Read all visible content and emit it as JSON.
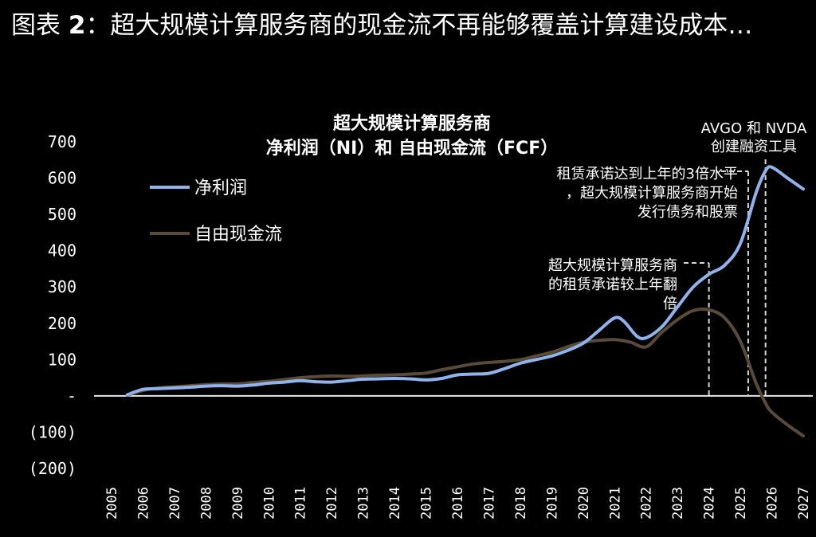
{
  "figure": {
    "title_prefix": "图表",
    "title_number": "2",
    "title_rest": "：超大规模计算服务商的现金流不再能够覆盖计算建设成本…"
  },
  "colors": {
    "background": "#000000",
    "net_income": "#8fb3ea",
    "fcf": "#5a4a38",
    "text": "#ffffff",
    "dashed": "#d8d8d8"
  },
  "chart_data": {
    "type": "line",
    "title_line1": "超大规模计算服务商",
    "title_line2": "净利润（NI）和 自由现金流（FCF）",
    "x": [
      "2005",
      "2006",
      "2007",
      "2008",
      "2009",
      "2010",
      "2011",
      "2012",
      "2013",
      "2014",
      "2015",
      "2016",
      "2017",
      "2018",
      "2019",
      "2020",
      "2021",
      "2022",
      "2023",
      "2024",
      "2025",
      "2026",
      "2027"
    ],
    "y_ticks": [
      700,
      600,
      500,
      400,
      300,
      200,
      100,
      0,
      -100,
      -200
    ],
    "y_tick_labels": [
      "700",
      "600",
      "500",
      "400",
      "300",
      "200",
      "100",
      "-",
      "(100)",
      "(200)"
    ],
    "ylim": [
      -200,
      700
    ],
    "grid": false,
    "legend_position": "top-left",
    "series": [
      {
        "name": "净利润",
        "color": "#8fb3ea",
        "points": [
          [
            2005.5,
            3
          ],
          [
            2006,
            18
          ],
          [
            2006.5,
            20
          ],
          [
            2007,
            22
          ],
          [
            2007.5,
            24
          ],
          [
            2008,
            27
          ],
          [
            2008.5,
            28
          ],
          [
            2009,
            27
          ],
          [
            2009.5,
            30
          ],
          [
            2010,
            35
          ],
          [
            2010.5,
            38
          ],
          [
            2011,
            42
          ],
          [
            2011.5,
            39
          ],
          [
            2012,
            38
          ],
          [
            2012.5,
            42
          ],
          [
            2013,
            46
          ],
          [
            2013.5,
            47
          ],
          [
            2014,
            48
          ],
          [
            2014.5,
            47
          ],
          [
            2015,
            44
          ],
          [
            2015.5,
            48
          ],
          [
            2016,
            58
          ],
          [
            2016.5,
            60
          ],
          [
            2017,
            62
          ],
          [
            2017.5,
            75
          ],
          [
            2018,
            90
          ],
          [
            2018.5,
            100
          ],
          [
            2019,
            110
          ],
          [
            2019.5,
            125
          ],
          [
            2020,
            145
          ],
          [
            2020.5,
            180
          ],
          [
            2021,
            215
          ],
          [
            2021.3,
            205
          ],
          [
            2021.7,
            165
          ],
          [
            2022,
            160
          ],
          [
            2022.5,
            190
          ],
          [
            2023,
            245
          ],
          [
            2023.5,
            300
          ],
          [
            2024,
            335
          ],
          [
            2024.5,
            360
          ],
          [
            2025,
            420
          ],
          [
            2025.5,
            560
          ],
          [
            2025.8,
            620
          ],
          [
            2026,
            630
          ],
          [
            2026.5,
            600
          ],
          [
            2027,
            570
          ]
        ]
      },
      {
        "name": "自由现金流",
        "color": "#5a4a38",
        "points": [
          [
            2005.5,
            2
          ],
          [
            2006,
            15
          ],
          [
            2006.5,
            22
          ],
          [
            2007,
            25
          ],
          [
            2007.5,
            28
          ],
          [
            2008,
            31
          ],
          [
            2008.5,
            33
          ],
          [
            2009,
            33
          ],
          [
            2009.5,
            37
          ],
          [
            2010,
            40
          ],
          [
            2010.5,
            45
          ],
          [
            2011,
            50
          ],
          [
            2011.5,
            53
          ],
          [
            2012,
            55
          ],
          [
            2012.5,
            54
          ],
          [
            2013,
            55
          ],
          [
            2013.5,
            57
          ],
          [
            2014,
            58
          ],
          [
            2014.5,
            60
          ],
          [
            2015,
            63
          ],
          [
            2015.5,
            72
          ],
          [
            2016,
            80
          ],
          [
            2016.5,
            88
          ],
          [
            2017,
            92
          ],
          [
            2017.5,
            95
          ],
          [
            2018,
            100
          ],
          [
            2018.5,
            110
          ],
          [
            2019,
            120
          ],
          [
            2019.5,
            135
          ],
          [
            2020,
            148
          ],
          [
            2020.5,
            153
          ],
          [
            2021,
            155
          ],
          [
            2021.5,
            148
          ],
          [
            2022,
            135
          ],
          [
            2022.5,
            175
          ],
          [
            2023,
            210
          ],
          [
            2023.5,
            235
          ],
          [
            2024,
            237
          ],
          [
            2024.5,
            215
          ],
          [
            2025,
            150
          ],
          [
            2025.5,
            35
          ],
          [
            2025.8,
            -20
          ],
          [
            2026,
            -45
          ],
          [
            2026.5,
            -80
          ],
          [
            2027,
            -110
          ]
        ]
      }
    ],
    "annotations": [
      {
        "lines": [
          "AVGO 和 NVDA",
          "创建融资工具"
        ],
        "x": 2025.8
      },
      {
        "lines": [
          "租赁承诺达到上年的3倍水平",
          "，超大规模计算服务商开始",
          "发行债务和股票"
        ],
        "x": 2025.25
      },
      {
        "lines": [
          "超大规模计算服务商",
          "的租赁承诺较上年翻",
          "倍"
        ],
        "x": 2024.0
      }
    ]
  }
}
